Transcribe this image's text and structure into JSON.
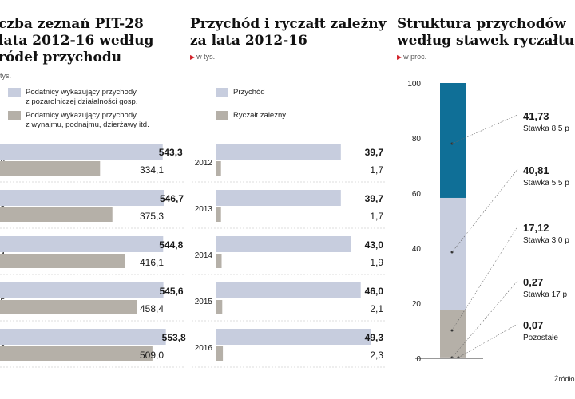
{
  "colors": {
    "light_bar": "#c7cdde",
    "dark_bar": "#b5b0a8",
    "blue": "#0f6f97",
    "accent": "#d2232a"
  },
  "panel1": {
    "title_lines": [
      "czba zeznań PIT-28",
      "lata 2012-16 według",
      "ródeł przychodu"
    ],
    "unit": "tys.",
    "legend": [
      {
        "lines": [
          "Podatnicy wykazujący przychody",
          "z pozarolniczej działalności gosp."
        ],
        "color": "#c7cdde"
      },
      {
        "lines": [
          "Podatnicy wykazujący przychody",
          "z wynajmu, podnajmu, dzierżawy itd."
        ],
        "color": "#b5b0a8"
      }
    ]
  },
  "panel2": {
    "title_lines": [
      "Przychód i ryczałt zależny",
      "za lata 2012-16"
    ],
    "unit": "w tys.",
    "legend": [
      {
        "label": "Przychód",
        "color": "#c7cdde"
      },
      {
        "label": "Ryczałt zależny",
        "color": "#b5b0a8"
      }
    ]
  },
  "panel3": {
    "title_lines": [
      "Struktura przychodów",
      "według stawek ryczałtu"
    ],
    "unit": "w proc."
  },
  "source": "Źródło",
  "chart_data": [
    {
      "type": "bar",
      "orientation": "horizontal",
      "categories": [
        "2",
        "3",
        "4",
        "5",
        "6"
      ],
      "series": [
        {
          "name": "Podatnicy wykazujący przychody z pozarolniczej działalności gosp.",
          "values": [
            543.3,
            546.7,
            544.8,
            545.6,
            553.8
          ],
          "labels": [
            "543,3",
            "546,7",
            "544,8",
            "545,6",
            "553,8"
          ]
        },
        {
          "name": "Podatnicy wykazujący przychody z wynajmu, podnajmu, dzierżawy itd.",
          "values": [
            334.1,
            375.3,
            416.1,
            458.4,
            509.0
          ],
          "labels": [
            "334,1",
            "375,3",
            "416,1",
            "458,4",
            "509,0"
          ]
        }
      ]
    },
    {
      "type": "bar",
      "orientation": "horizontal",
      "categories": [
        "2012",
        "2013",
        "2014",
        "2015",
        "2016"
      ],
      "series": [
        {
          "name": "Przychód",
          "values": [
            39.7,
            39.7,
            43.0,
            46.0,
            49.3
          ],
          "labels": [
            "39,7",
            "39,7",
            "43,0",
            "46,0",
            "49,3"
          ]
        },
        {
          "name": "Ryczałt zależny",
          "values": [
            1.7,
            1.7,
            1.9,
            2.1,
            2.3
          ],
          "labels": [
            "1,7",
            "1,7",
            "1,9",
            "2,1",
            "2,3"
          ]
        }
      ]
    },
    {
      "type": "bar",
      "stacked": true,
      "ylim": [
        0,
        100
      ],
      "yticks": [
        0,
        20,
        40,
        60,
        80,
        100
      ],
      "segments": [
        {
          "name": "Pozostałe",
          "value": 0.07,
          "label": "0,07",
          "color": "#b5b0a8"
        },
        {
          "name": "Stawka 17 p",
          "value": 0.27,
          "label": "0,27",
          "color": "#b5b0a8"
        },
        {
          "name": "Stawka 3,0 p",
          "value": 17.12,
          "label": "17,12",
          "color": "#b5b0a8"
        },
        {
          "name": "Stawka 5,5 p",
          "value": 40.81,
          "label": "40,81",
          "color": "#c7cdde"
        },
        {
          "name": "Stawka 8,5 p",
          "value": 41.73,
          "label": "41,73",
          "color": "#0f6f97"
        }
      ]
    }
  ]
}
